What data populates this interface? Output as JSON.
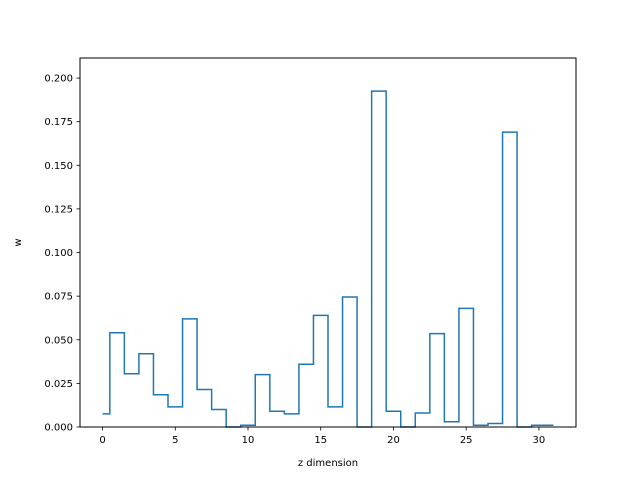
{
  "chart_data": {
    "type": "step",
    "xlabel": "z dimension",
    "ylabel": "w",
    "xlim": [
      -1.55,
      32.55
    ],
    "ylim": [
      0,
      0.2115
    ],
    "xticks": [
      0,
      5,
      10,
      15,
      20,
      25,
      30
    ],
    "xtick_labels": [
      "0",
      "5",
      "10",
      "15",
      "20",
      "25",
      "30"
    ],
    "yticks": [
      0.0,
      0.025,
      0.05,
      0.075,
      0.1,
      0.125,
      0.15,
      0.175,
      0.2
    ],
    "ytick_labels": [
      "0.000",
      "0.025",
      "0.050",
      "0.075",
      "0.100",
      "0.125",
      "0.150",
      "0.175",
      "0.200"
    ],
    "grid": false,
    "line_color": "#1f77b4",
    "x": [
      0,
      1,
      2,
      3,
      4,
      5,
      6,
      7,
      8,
      9,
      10,
      11,
      12,
      13,
      14,
      15,
      16,
      17,
      18,
      19,
      20,
      21,
      22,
      23,
      24,
      25,
      26,
      27,
      28,
      29,
      30,
      31
    ],
    "values": [
      0.0075,
      0.054,
      0.0305,
      0.042,
      0.0185,
      0.0115,
      0.062,
      0.0215,
      0.01,
      0.0,
      0.001,
      0.03,
      0.009,
      0.0075,
      0.036,
      0.064,
      0.0115,
      0.0745,
      0.0,
      0.1925,
      0.009,
      0.0,
      0.008,
      0.0535,
      0.003,
      0.068,
      0.001,
      0.002,
      0.169,
      0.0,
      0.001,
      0.001
    ]
  }
}
